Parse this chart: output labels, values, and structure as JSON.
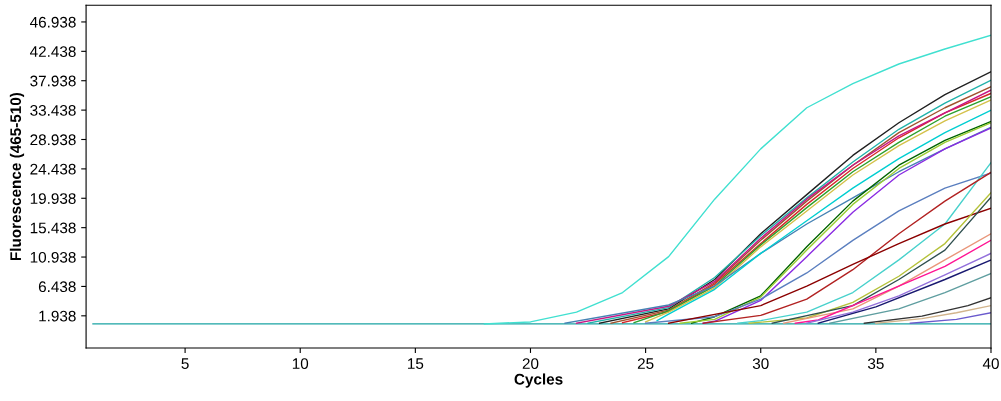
{
  "chart_data": {
    "type": "line",
    "xlabel": "Cycles",
    "ylabel": "Fluorescence (465-510)",
    "xlim": [
      0.7,
      40
    ],
    "xticks": [
      5,
      10,
      15,
      20,
      25,
      30,
      35,
      40
    ],
    "ylim": [
      -3,
      49.5
    ],
    "yticks": [
      1.938,
      6.438,
      10.938,
      15.438,
      19.938,
      24.438,
      28.938,
      33.438,
      37.938,
      42.438,
      46.938
    ],
    "grid": false,
    "legend": false,
    "marker": "none",
    "line_style": "solid",
    "series": [
      {
        "color": "#1aa3a3",
        "x": [
          1,
          40
        ],
        "values": [
          0.7,
          0.7
        ]
      },
      {
        "color": "#40e0d0",
        "x": [
          18,
          20,
          22,
          24,
          26,
          28,
          30,
          32,
          34,
          36,
          38,
          40
        ],
        "values": [
          0.7,
          1.0,
          2.5,
          5.5,
          11,
          19.8,
          27.5,
          33.8,
          37.5,
          40.5,
          42.8,
          44.9
        ]
      },
      {
        "color": "#202020",
        "x": [
          23,
          26,
          28,
          30,
          32,
          34,
          36,
          38,
          40
        ],
        "values": [
          0.8,
          3,
          7.5,
          14.5,
          20.5,
          26.5,
          31.5,
          35.8,
          39.3
        ]
      },
      {
        "color": "#20b2aa",
        "x": [
          22.5,
          26,
          28,
          30,
          32,
          34,
          36,
          38,
          40
        ],
        "values": [
          0.8,
          3.2,
          7.8,
          14.2,
          20,
          25.5,
          30.5,
          34.5,
          38
        ]
      },
      {
        "color": "#a0522d",
        "x": [
          23.5,
          26,
          28,
          30,
          32,
          34,
          36,
          38,
          40
        ],
        "values": [
          0.8,
          2.8,
          7,
          13.5,
          19.5,
          25,
          30,
          33.8,
          37
        ]
      },
      {
        "color": "#d62728",
        "x": [
          24,
          26,
          28,
          30,
          32,
          34,
          36,
          38,
          40
        ],
        "values": [
          0.9,
          2.6,
          6.8,
          13,
          19,
          24.5,
          29.2,
          33,
          36
        ]
      },
      {
        "color": "#c71585",
        "x": [
          22,
          26,
          28,
          30,
          32,
          34,
          36,
          38,
          40
        ],
        "values": [
          0.8,
          3.4,
          7.2,
          13.8,
          19.8,
          25,
          29.5,
          33,
          36.5
        ]
      },
      {
        "color": "#2ca02c",
        "x": [
          24.5,
          26,
          28,
          30,
          32,
          34,
          36,
          38,
          40
        ],
        "values": [
          0.9,
          2.7,
          6.5,
          12.8,
          18.5,
          24,
          28.5,
          32.5,
          35.5
        ]
      },
      {
        "color": "#d4c14a",
        "x": [
          25,
          26,
          28,
          30,
          32,
          34,
          36,
          38,
          40
        ],
        "values": [
          1.0,
          2.5,
          6.2,
          12.5,
          18,
          23.5,
          28,
          31.8,
          35
        ]
      },
      {
        "color": "#4682b4",
        "x": [
          21.5,
          26,
          28,
          30,
          32,
          34,
          36,
          38,
          40
        ],
        "values": [
          0.8,
          3.6,
          6.5,
          11.5,
          16,
          20,
          24,
          27.5,
          30.8
        ]
      },
      {
        "color": "#00ced1",
        "x": [
          25.5,
          26,
          28,
          30,
          32,
          34,
          36,
          38,
          40
        ],
        "values": [
          1.2,
          2.2,
          6,
          11.5,
          16.5,
          21.5,
          26,
          30,
          33.4
        ]
      },
      {
        "color": "#006400",
        "x": [
          27,
          28,
          30,
          32,
          34,
          36,
          38,
          40
        ],
        "values": [
          0.8,
          1.8,
          5,
          12.5,
          19.5,
          25,
          28.8,
          31.7
        ]
      },
      {
        "color": "#9acd32",
        "x": [
          26.5,
          28,
          30,
          32,
          34,
          36,
          38,
          40
        ],
        "values": [
          0.8,
          1.4,
          4.8,
          12,
          19,
          24.5,
          28.5,
          31.5
        ]
      },
      {
        "color": "#8a2be2",
        "x": [
          27.5,
          28,
          30,
          32,
          34,
          36,
          38,
          40
        ],
        "values": [
          0.8,
          1.1,
          4.3,
          11,
          17.8,
          23.5,
          27.5,
          30.7
        ]
      },
      {
        "color": "#5b7fbf",
        "x": [
          25,
          28,
          30,
          32,
          34,
          36,
          38,
          40
        ],
        "values": [
          0.8,
          1.8,
          4.5,
          8.5,
          13.5,
          18,
          21.5,
          23.8
        ]
      },
      {
        "color": "#48d1cc",
        "x": [
          29,
          30,
          32,
          34,
          36,
          38,
          40
        ],
        "values": [
          0.8,
          1.2,
          2.5,
          5.5,
          10.5,
          16,
          25.4
        ]
      },
      {
        "color": "#b22222",
        "x": [
          27.5,
          30,
          32,
          34,
          36,
          38,
          40
        ],
        "values": [
          0.8,
          2.0,
          4.5,
          9,
          14.5,
          19.5,
          23.9
        ]
      },
      {
        "color": "#8b0000",
        "x": [
          26,
          30,
          32,
          34,
          36,
          38,
          40
        ],
        "values": [
          0.8,
          3.5,
          6.5,
          9.8,
          13,
          16,
          18.4
        ]
      },
      {
        "color": "#b5c23a",
        "x": [
          29.5,
          32,
          34,
          36,
          38,
          40
        ],
        "values": [
          0.8,
          1.6,
          4,
          8,
          13,
          20.8
        ]
      },
      {
        "color": "#2f4f4f",
        "x": [
          30.5,
          34,
          36,
          38,
          40
        ],
        "values": [
          0.8,
          3.5,
          7.5,
          12,
          20.1
        ]
      },
      {
        "color": "#e9967a",
        "x": [
          31,
          34,
          36,
          38,
          40
        ],
        "values": [
          0.8,
          3.0,
          6.5,
          10.5,
          14.5
        ]
      },
      {
        "color": "#ff1493",
        "x": [
          31.5,
          32.5,
          35,
          38,
          40
        ],
        "values": [
          0.8,
          1.3,
          5,
          9.5,
          13.5
        ]
      },
      {
        "color": "#9370db",
        "x": [
          32,
          34,
          36,
          38,
          40
        ],
        "values": [
          0.8,
          2.5,
          5,
          8.2,
          11.5
        ]
      },
      {
        "color": "#191970",
        "x": [
          32.5,
          35,
          38,
          40
        ],
        "values": [
          0.8,
          3.3,
          7.5,
          10.5
        ]
      },
      {
        "color": "#5f9ea0",
        "x": [
          33,
          36,
          38,
          40
        ],
        "values": [
          0.8,
          3,
          5.5,
          8.4
        ]
      },
      {
        "color": "#333333",
        "x": [
          34.5,
          37,
          39,
          40
        ],
        "values": [
          0.8,
          1.9,
          3.5,
          4.7
        ]
      },
      {
        "color": "#d2b48c",
        "x": [
          35,
          37,
          38.5,
          40
        ],
        "values": [
          0.8,
          1.5,
          2.4,
          3.5
        ]
      },
      {
        "color": "#6a5acd",
        "x": [
          36.5,
          38.5,
          40
        ],
        "values": [
          0.8,
          1.4,
          2.4
        ]
      }
    ]
  }
}
